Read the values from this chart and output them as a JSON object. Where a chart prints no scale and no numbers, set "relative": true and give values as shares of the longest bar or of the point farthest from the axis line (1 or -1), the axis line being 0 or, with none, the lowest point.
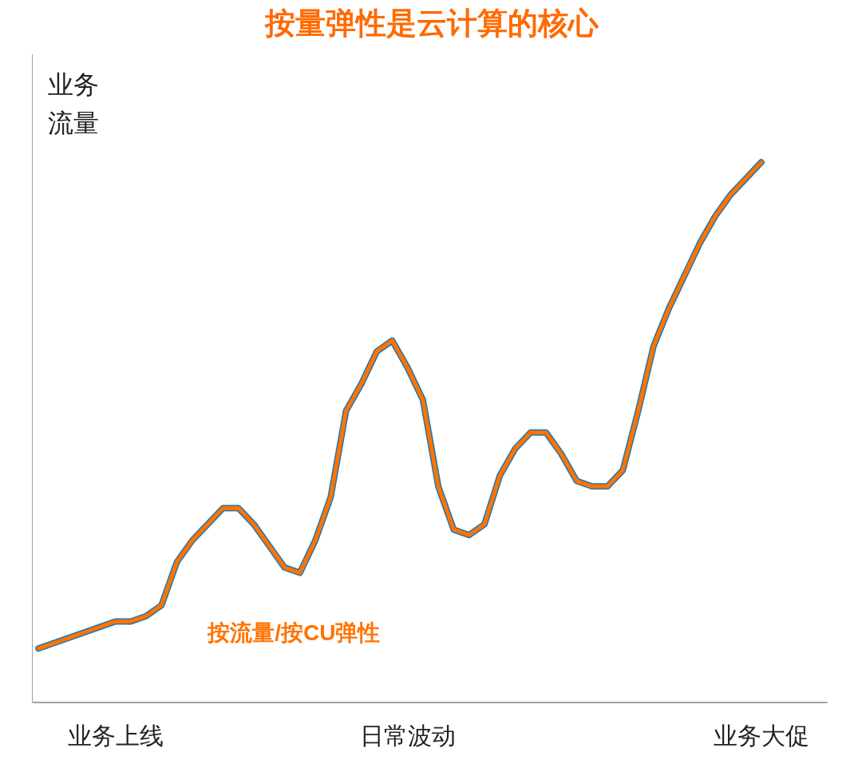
{
  "chart_data": {
    "type": "line",
    "title": "按量弹性是云计算的核心",
    "ylabel": "业务流量",
    "relative": true,
    "categories": [
      null,
      null,
      null,
      null,
      null,
      "业务上线",
      null,
      null,
      null,
      null,
      null,
      null,
      null,
      null,
      null,
      null,
      null,
      null,
      null,
      null,
      null,
      null,
      null,
      null,
      "日常波动",
      null,
      null,
      null,
      null,
      null,
      null,
      null,
      null,
      null,
      null,
      null,
      null,
      null,
      null,
      null,
      null,
      null,
      null,
      null,
      null,
      null,
      null,
      "业务大促"
    ],
    "series": [
      {
        "color": "#1f77b4",
        "values": [
          0.1,
          0.11,
          0.12,
          0.13,
          0.14,
          0.15,
          0.15,
          0.16,
          0.18,
          0.26,
          0.3,
          0.33,
          0.36,
          0.36,
          0.33,
          0.29,
          0.25,
          0.24,
          0.3,
          0.38,
          0.54,
          0.59,
          0.65,
          0.67,
          0.62,
          0.56,
          0.4,
          0.32,
          0.31,
          0.33,
          0.42,
          0.47,
          0.5,
          0.5,
          0.46,
          0.41,
          0.4,
          0.4,
          0.43,
          0.54,
          0.66,
          0.73,
          0.79,
          0.85,
          0.9,
          0.94,
          0.97,
          1.0
        ]
      },
      {
        "name": "按流量/按CU弹性",
        "color": "#ff7300",
        "values": [
          0.1,
          0.11,
          0.12,
          0.13,
          0.14,
          0.15,
          0.15,
          0.16,
          0.18,
          0.26,
          0.3,
          0.33,
          0.36,
          0.36,
          0.33,
          0.29,
          0.25,
          0.24,
          0.3,
          0.38,
          0.54,
          0.59,
          0.65,
          0.67,
          0.62,
          0.56,
          0.4,
          0.32,
          0.31,
          0.33,
          0.42,
          0.47,
          0.5,
          0.5,
          0.46,
          0.41,
          0.4,
          0.4,
          0.43,
          0.54,
          0.66,
          0.73,
          0.79,
          0.85,
          0.9,
          0.94,
          0.97,
          1.0
        ]
      }
    ],
    "grid": false
  }
}
